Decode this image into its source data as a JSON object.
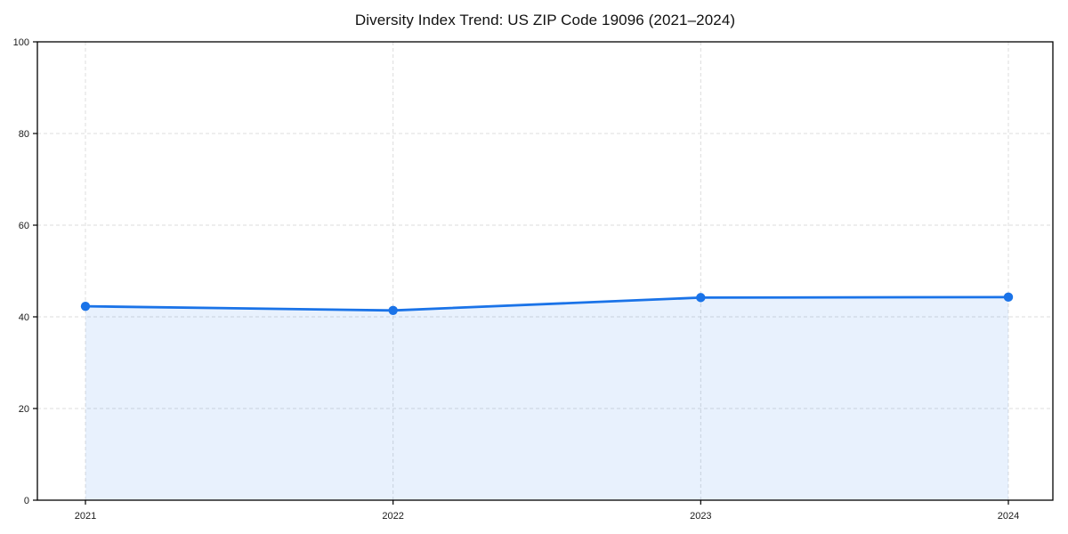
{
  "page": {
    "background": "#ffffff"
  },
  "chart_data": {
    "type": "line",
    "title": "Diversity Index Trend: US ZIP Code 19096 (2021–2024)",
    "categories": [
      "2021",
      "2022",
      "2023",
      "2024"
    ],
    "series": [
      {
        "name": "Diversity Index",
        "values": [
          42.3,
          41.4,
          44.2,
          44.3
        ]
      }
    ],
    "xlabel": "",
    "ylabel": "",
    "ylim": [
      0,
      100
    ],
    "yticks": [
      0,
      20,
      40,
      60,
      80,
      100
    ],
    "grid": "on",
    "grid_style": "dashed",
    "legend_position": "none",
    "area_fill": "true",
    "marker": "circle",
    "colors": {
      "line": "#1a73e8",
      "area_fill_opacity": 0.1,
      "gridline": "#dcdcdc",
      "spine": "#000000",
      "tick_text": "#1a1a1a",
      "title_text": "#111111"
    }
  }
}
